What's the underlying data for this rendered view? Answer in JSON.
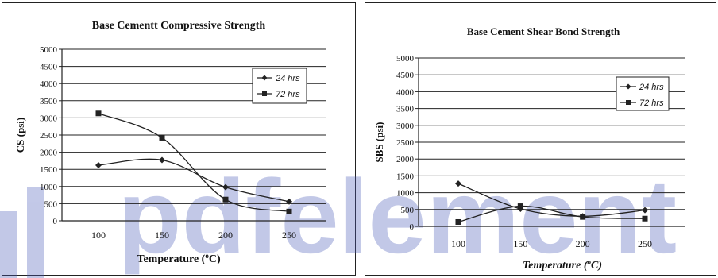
{
  "chart_data": [
    {
      "type": "line",
      "title": "Base  Cementt Compressive Strength",
      "xlabel": "Temperature (°C)",
      "xlabel_parts": [
        "Temperature (",
        "o",
        "C)"
      ],
      "ylabel": "CS (psi)",
      "categories": [
        "100",
        "150",
        "200",
        "250"
      ],
      "yticks": [
        "0",
        "500",
        "1000",
        "1500",
        "2000",
        "2500",
        "3000",
        "3500",
        "4000",
        "4500",
        "5000"
      ],
      "ylim": [
        0,
        5000
      ],
      "grid": true,
      "legend_position": "top-right",
      "series": [
        {
          "name": "24 hrs",
          "marker": "diamond",
          "values": [
            1620,
            1770,
            980,
            560
          ]
        },
        {
          "name": "72 hrs",
          "marker": "square",
          "values": [
            3130,
            2420,
            620,
            270
          ]
        }
      ]
    },
    {
      "type": "line",
      "title": "Base Cement Shear Bond Strength",
      "xlabel": "Temperature (°C)",
      "xlabel_parts": [
        "Temperature (",
        "o",
        "C)"
      ],
      "ylabel": "SBS (psi)",
      "categories": [
        "100",
        "150",
        "200",
        "250"
      ],
      "yticks": [
        "0",
        "500",
        "1000",
        "1500",
        "2000",
        "2500",
        "3000",
        "3500",
        "4000",
        "4500",
        "5000"
      ],
      "ylim": [
        0,
        5000
      ],
      "grid": true,
      "legend_position": "top-right",
      "series": [
        {
          "name": "24 hrs",
          "marker": "diamond",
          "values": [
            1270,
            520,
            300,
            480
          ]
        },
        {
          "name": "72 hrs",
          "marker": "square",
          "values": [
            130,
            600,
            280,
            230
          ]
        }
      ]
    }
  ],
  "watermark": {
    "text": "pdfelement",
    "color": "#4a5bb8"
  },
  "colors": {
    "line": "#222222",
    "grid": "#222222",
    "text": "#111111"
  }
}
